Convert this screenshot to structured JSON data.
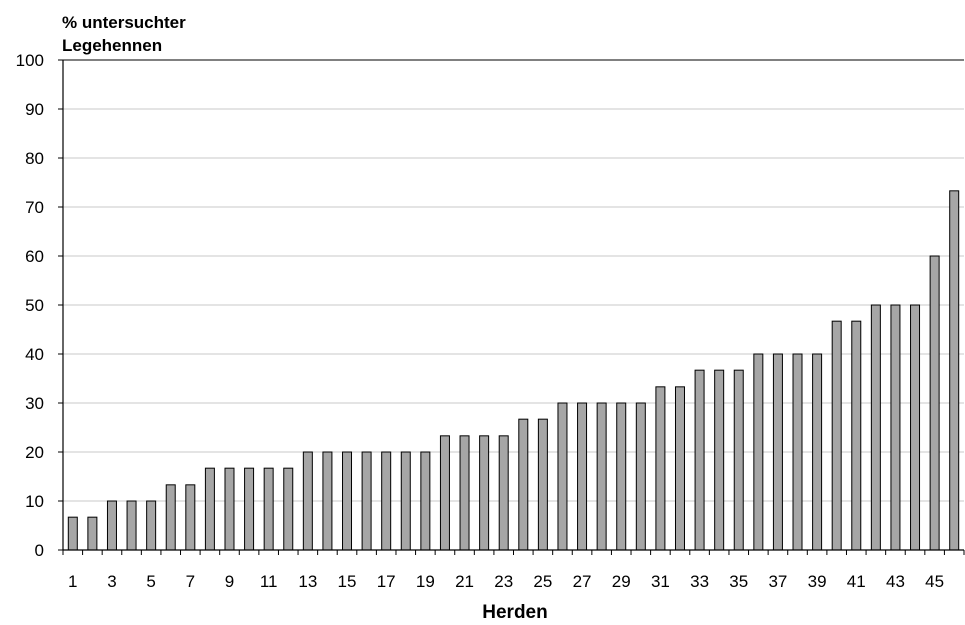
{
  "chart_data": {
    "type": "bar",
    "title": "",
    "ylabel_lines": [
      "% untersuchter",
      "Legehennen"
    ],
    "xlabel": "Herden",
    "ylim": [
      0,
      100
    ],
    "yticks": [
      0,
      10,
      20,
      30,
      40,
      50,
      60,
      70,
      80,
      90,
      100
    ],
    "grid": true,
    "categories": [
      "1",
      "2",
      "3",
      "4",
      "5",
      "6",
      "7",
      "8",
      "9",
      "10",
      "11",
      "12",
      "13",
      "14",
      "15",
      "16",
      "17",
      "18",
      "19",
      "20",
      "21",
      "22",
      "23",
      "24",
      "25",
      "26",
      "27",
      "28",
      "29",
      "30",
      "31",
      "32",
      "33",
      "34",
      "35",
      "36",
      "37",
      "38",
      "39",
      "40",
      "41",
      "42",
      "43",
      "44",
      "45",
      "46"
    ],
    "category_labels_shown": [
      "1",
      "",
      "3",
      "",
      "5",
      "",
      "7",
      "",
      "9",
      "",
      "11",
      "",
      "13",
      "",
      "15",
      "",
      "17",
      "",
      "19",
      "",
      "21",
      "",
      "23",
      "",
      "25",
      "",
      "27",
      "",
      "29",
      "",
      "31",
      "",
      "33",
      "",
      "35",
      "",
      "37",
      "",
      "39",
      "",
      "41",
      "",
      "43",
      "",
      "45",
      ""
    ],
    "values": [
      6.7,
      6.7,
      10,
      10,
      10,
      13.3,
      13.3,
      16.7,
      16.7,
      16.7,
      16.7,
      16.7,
      20,
      20,
      20,
      20,
      20,
      20,
      20,
      23.3,
      23.3,
      23.3,
      23.3,
      26.7,
      26.7,
      30,
      30,
      30,
      30,
      30,
      33.3,
      33.3,
      36.7,
      36.7,
      36.7,
      40,
      40,
      40,
      40,
      46.7,
      46.7,
      50,
      50,
      50,
      60,
      73.3
    ],
    "bar_color": "#a6a6a6"
  }
}
